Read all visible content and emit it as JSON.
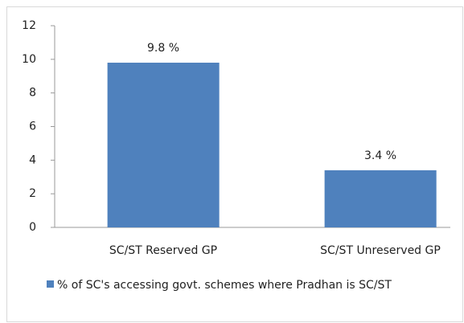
{
  "chart_data": {
    "type": "bar",
    "categories": [
      "SC/ST Reserved GP",
      "SC/ST Unreserved GP"
    ],
    "series": [
      {
        "name": "% of SC's accessing govt. schemes where Pradhan is SC/ST",
        "color": "#4f81bd",
        "values": [
          9.8,
          3.4
        ],
        "value_labels": [
          "9.8 %",
          "3.4 %"
        ]
      }
    ],
    "ylim": [
      0,
      12
    ],
    "yticks": [
      0,
      2,
      4,
      6,
      8,
      10,
      12
    ],
    "grid": false,
    "legend": "bottom"
  }
}
